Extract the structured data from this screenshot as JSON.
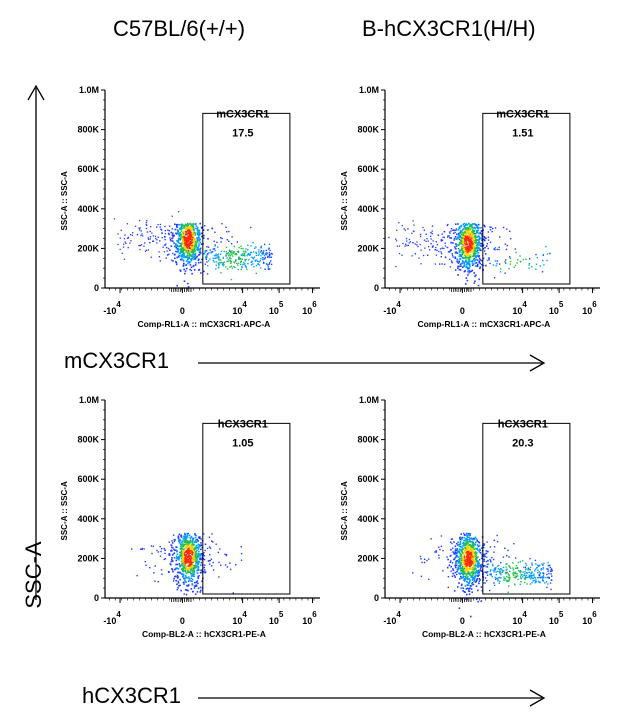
{
  "column_titles": [
    "C57BL/6(+/+)",
    "B-hCX3CR1(H/H)"
  ],
  "row_labels": [
    "mCX3CR1",
    "hCX3CR1"
  ],
  "shared_y_label": "SSC-A",
  "chart_data": [
    {
      "type": "scatter",
      "panel": "top-left",
      "title": "",
      "xlabel": "Comp-RL1-A :: mCX3CR1-APC-A",
      "ylabel": "SSC-A :: SSC-A",
      "x_tick_labels": [
        "-10^4",
        "0",
        "10^4",
        "10^5",
        "10^6"
      ],
      "y_tick_labels": [
        "0",
        "200K",
        "400K",
        "600K",
        "800K",
        "1.0M"
      ],
      "ylim": [
        0,
        1000000
      ],
      "gate": {
        "name": "mCX3CR1",
        "percent": "17.5"
      },
      "population": {
        "main_center_y": 250000,
        "tail": "strong"
      }
    },
    {
      "type": "scatter",
      "panel": "top-right",
      "title": "",
      "xlabel": "Comp-RL1-A :: mCX3CR1-APC-A",
      "ylabel": "SSC-A :: SSC-A",
      "x_tick_labels": [
        "-10^4",
        "0",
        "10^4",
        "10^5",
        "10^6"
      ],
      "y_tick_labels": [
        "0",
        "200K",
        "400K",
        "600K",
        "800K",
        "1.0M"
      ],
      "ylim": [
        0,
        1000000
      ],
      "gate": {
        "name": "mCX3CR1",
        "percent": "1.51"
      },
      "population": {
        "main_center_y": 230000,
        "tail": "weak"
      }
    },
    {
      "type": "scatter",
      "panel": "bottom-left",
      "title": "",
      "xlabel": "Comp-BL2-A :: hCX3CR1-PE-A",
      "ylabel": "SSC-A :: SSC-A",
      "x_tick_labels": [
        "-10^4",
        "0",
        "10^4",
        "10^5",
        "10^6"
      ],
      "y_tick_labels": [
        "0",
        "200K",
        "400K",
        "600K",
        "800K",
        "1.0M"
      ],
      "ylim": [
        0,
        1000000
      ],
      "gate": {
        "name": "hCX3CR1",
        "percent": "1.05"
      },
      "population": {
        "main_center_y": 210000,
        "tail": "none"
      }
    },
    {
      "type": "scatter",
      "panel": "bottom-right",
      "title": "",
      "xlabel": "Comp-BL2-A :: hCX3CR1-PE-A",
      "ylabel": "SSC-A :: SSC-A",
      "x_tick_labels": [
        "-10^4",
        "0",
        "10^4",
        "10^5",
        "10^6"
      ],
      "y_tick_labels": [
        "0",
        "200K",
        "400K",
        "600K",
        "800K",
        "1.0M"
      ],
      "ylim": [
        0,
        1000000
      ],
      "gate": {
        "name": "hCX3CR1",
        "percent": "20.3"
      },
      "population": {
        "main_center_y": 200000,
        "tail": "strong"
      }
    }
  ],
  "colors": {
    "density_low": "#1f3cff",
    "density_mid": "#21c24a",
    "density_high": "#ffd200",
    "density_peak": "#ff2a00"
  }
}
